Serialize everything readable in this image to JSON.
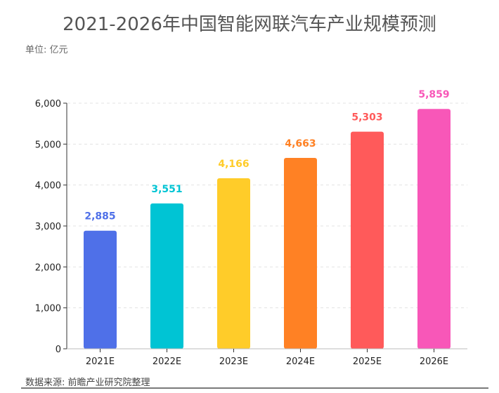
{
  "title": "2021-2026年中国智能网联汽车产业规模预测",
  "unit_label": "单位: 亿元",
  "source_label": "数据来源: 前瞻产业研究院整理",
  "chart_data": {
    "type": "bar",
    "title": "2021-2026年中国智能网联汽车产业规模预测",
    "xlabel": "",
    "ylabel": "",
    "categories": [
      "2021E",
      "2022E",
      "2023E",
      "2024E",
      "2025E",
      "2026E"
    ],
    "values": [
      2885,
      3551,
      4166,
      4663,
      5303,
      5859
    ],
    "value_labels": [
      "2,885",
      "3,551",
      "4,166",
      "4,663",
      "5,303",
      "5,859"
    ],
    "colors": [
      "#4F70E8",
      "#00C4D4",
      "#FFCC29",
      "#FF8124",
      "#FF5A5A",
      "#F857B8"
    ],
    "ylim": [
      0,
      6000
    ],
    "yticks": [
      0,
      1000,
      2000,
      3000,
      4000,
      5000,
      6000
    ],
    "ytick_labels": [
      "0",
      "1,000",
      "2,000",
      "3,000",
      "4,000",
      "5,000",
      "6,000"
    ],
    "grid": true,
    "legend": "none"
  }
}
